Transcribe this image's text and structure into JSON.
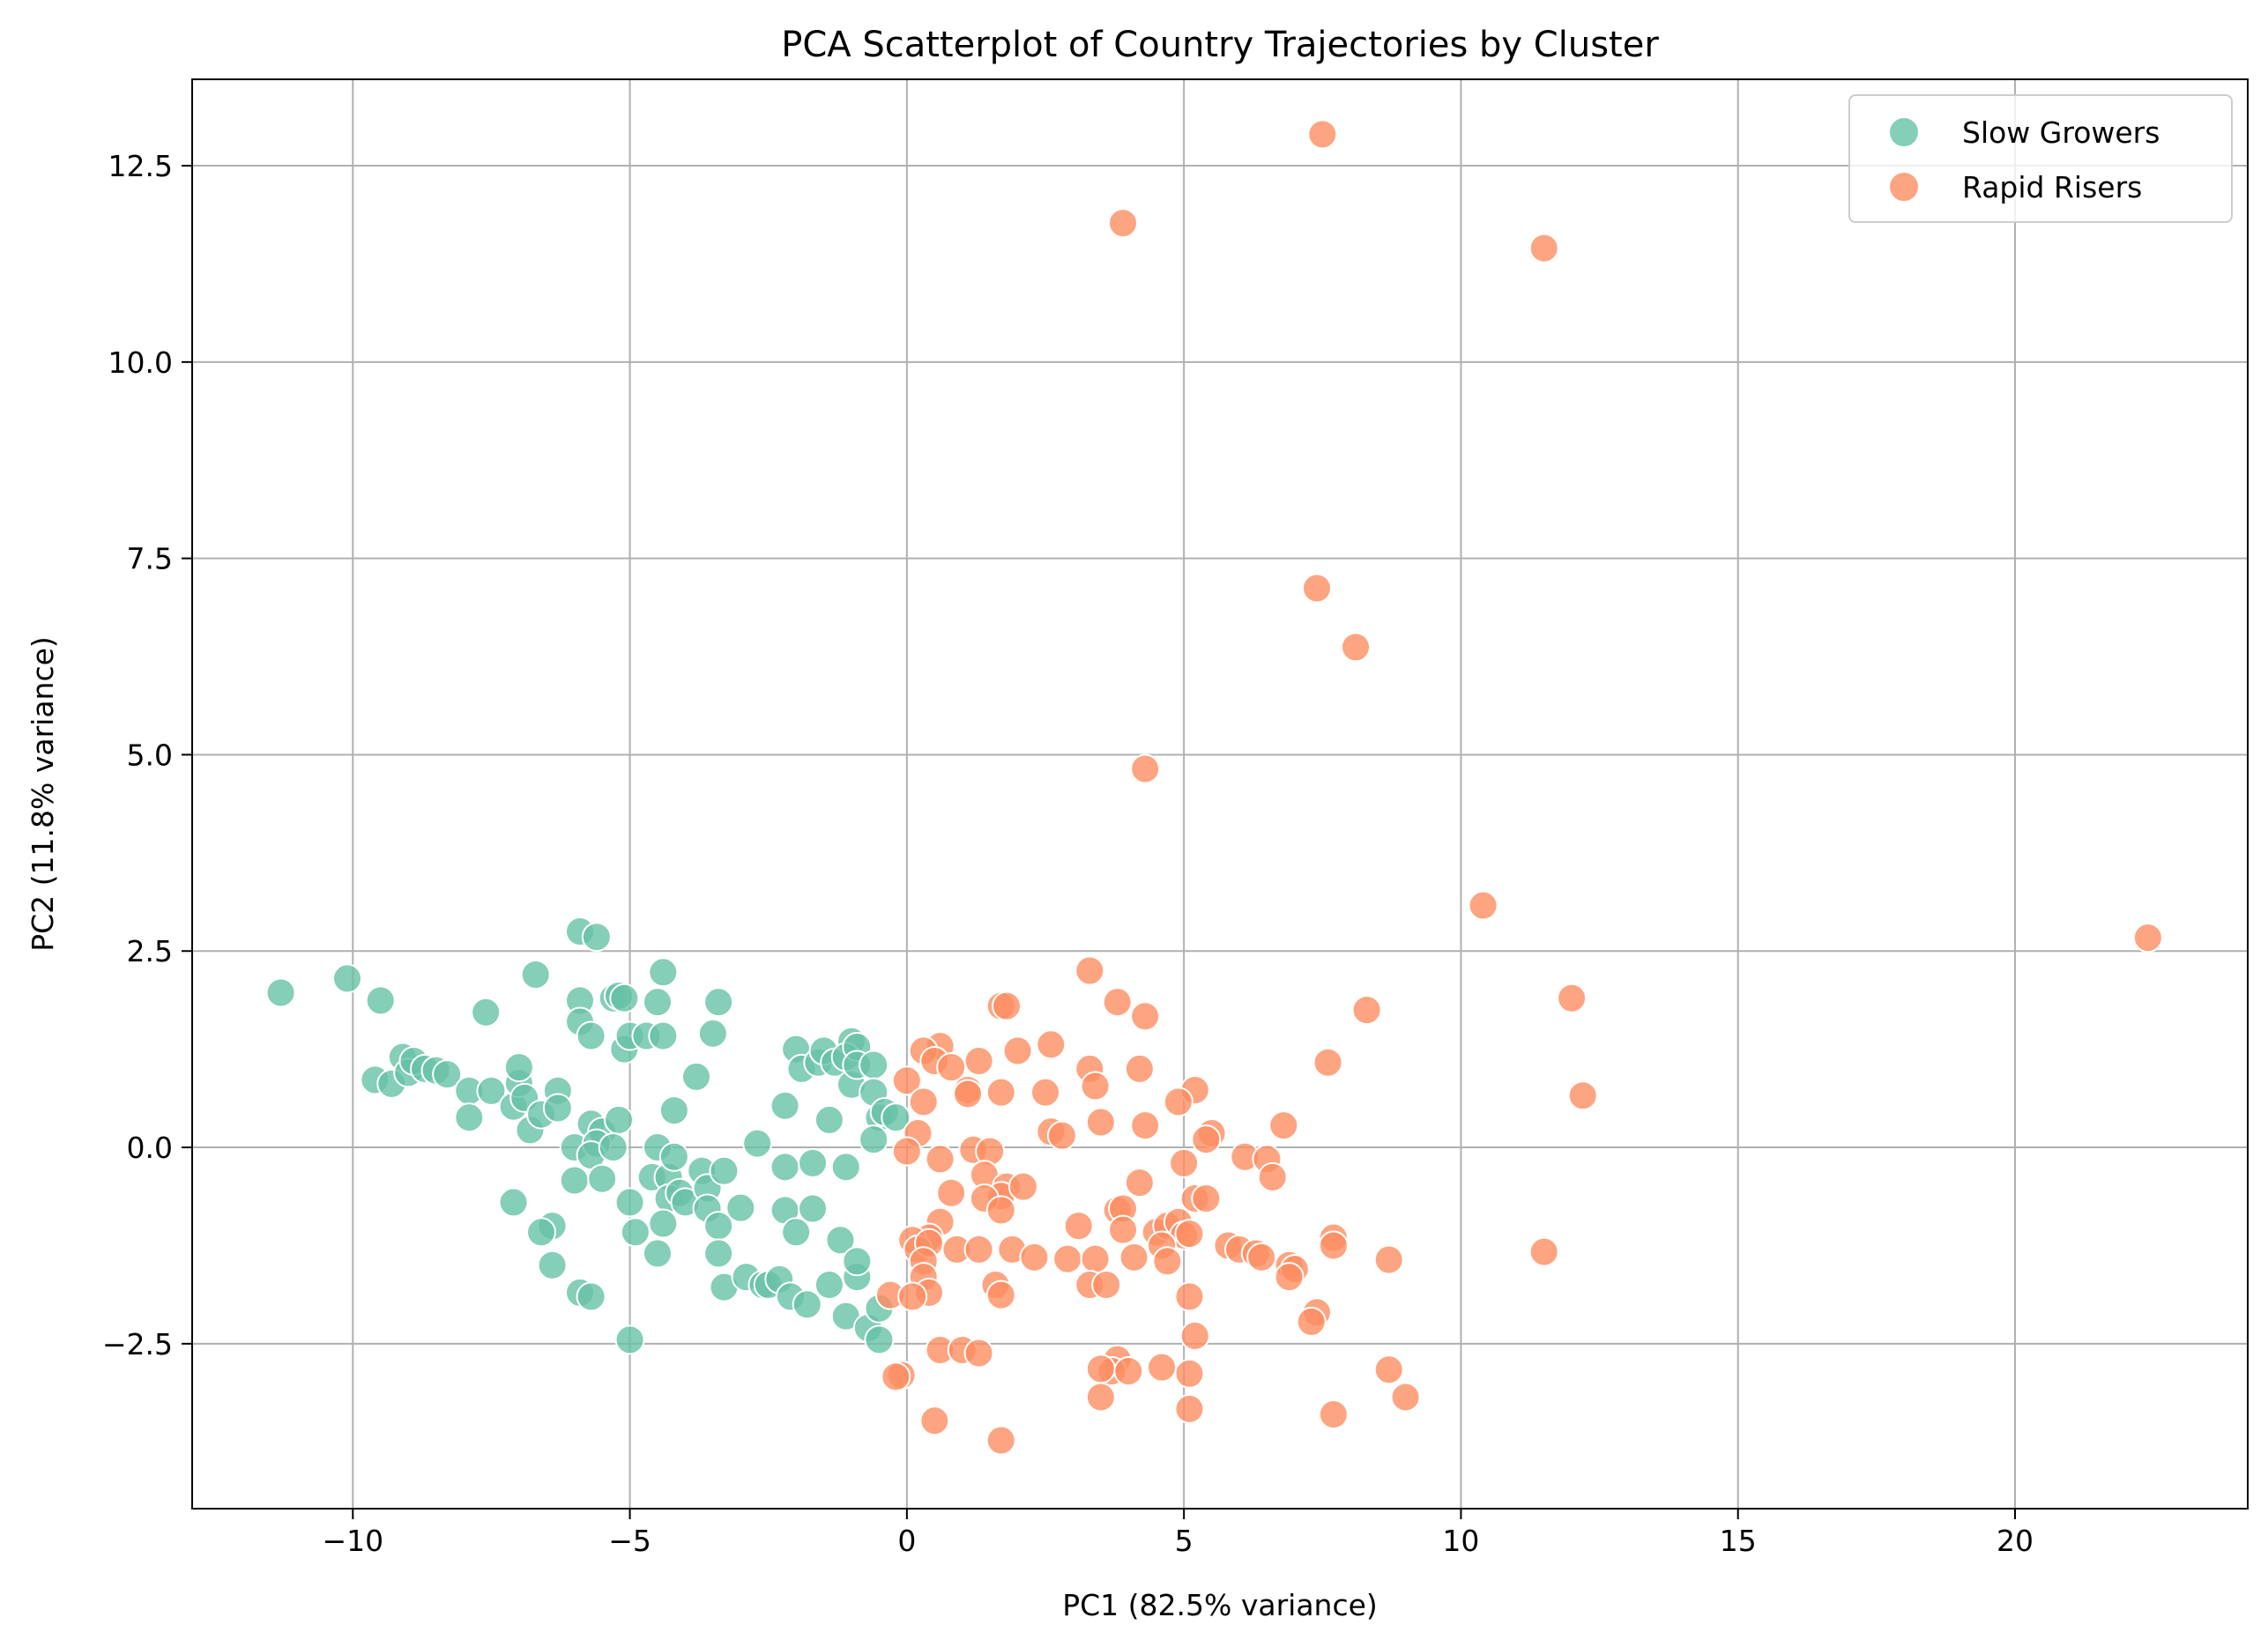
{
  "chart_data": {
    "type": "scatter",
    "title": "PCA Scatterplot of Country Trajectories by Cluster",
    "xlabel": "PC1 (82.5% variance)",
    "ylabel": "PC2 (11.8% variance)",
    "xlim": [
      -12.9,
      24.2
    ],
    "ylim": [
      -4.6,
      13.6
    ],
    "xticks": [
      -10,
      -5,
      0,
      5,
      10,
      15,
      20
    ],
    "xtick_labels": [
      "−10",
      "−5",
      "0",
      "5",
      "10",
      "15",
      "20"
    ],
    "yticks": [
      -2.5,
      0.0,
      2.5,
      5.0,
      7.5,
      10.0,
      12.5
    ],
    "ytick_labels": [
      "−2.5",
      "0.0",
      "2.5",
      "5.0",
      "7.5",
      "10.0",
      "12.5"
    ],
    "grid": true,
    "legend_position": "top-right",
    "series": [
      {
        "name": "Slow Growers",
        "color": "#66c2a5",
        "points": [
          [
            -11.3,
            1.97
          ],
          [
            -10.1,
            2.15
          ],
          [
            -9.5,
            1.87
          ],
          [
            -9.6,
            0.86
          ],
          [
            -9.3,
            0.81
          ],
          [
            -9.1,
            1.15
          ],
          [
            -9.0,
            0.95
          ],
          [
            -8.9,
            1.1
          ],
          [
            -8.7,
            1.0
          ],
          [
            -8.5,
            0.98
          ],
          [
            -8.3,
            0.93
          ],
          [
            -7.9,
            0.72
          ],
          [
            -7.9,
            0.38
          ],
          [
            -7.6,
            1.72
          ],
          [
            -7.5,
            0.72
          ],
          [
            -7.1,
            0.52
          ],
          [
            -7.0,
            0.82
          ],
          [
            -7.0,
            1.02
          ],
          [
            -6.9,
            0.63
          ],
          [
            -6.8,
            0.22
          ],
          [
            -6.7,
            2.2
          ],
          [
            -6.6,
            0.42
          ],
          [
            -6.3,
            0.72
          ],
          [
            -6.3,
            0.5
          ],
          [
            -6.4,
            -1.0
          ],
          [
            -6.6,
            -1.08
          ],
          [
            -6.4,
            -1.5
          ],
          [
            -7.1,
            -0.7
          ],
          [
            -6.0,
            0.0
          ],
          [
            -6.0,
            -0.42
          ],
          [
            -5.9,
            2.75
          ],
          [
            -5.9,
            1.87
          ],
          [
            -5.9,
            1.6
          ],
          [
            -5.6,
            2.68
          ],
          [
            -5.7,
            1.42
          ],
          [
            -5.7,
            0.3
          ],
          [
            -5.5,
            0.2
          ],
          [
            -5.6,
            0.05
          ],
          [
            -5.7,
            -0.1
          ],
          [
            -5.5,
            -0.4
          ],
          [
            -5.3,
            1.9
          ],
          [
            -5.2,
            1.93
          ],
          [
            -5.1,
            1.9
          ],
          [
            -5.1,
            1.25
          ],
          [
            -5.2,
            0.35
          ],
          [
            -5.0,
            1.42
          ],
          [
            -5.3,
            0.0
          ],
          [
            -5.0,
            -0.7
          ],
          [
            -4.9,
            -1.08
          ],
          [
            -5.0,
            -2.45
          ],
          [
            -5.9,
            -1.85
          ],
          [
            -5.7,
            -1.9
          ],
          [
            -4.7,
            1.42
          ],
          [
            -4.5,
            1.85
          ],
          [
            -4.4,
            2.23
          ],
          [
            -4.4,
            1.42
          ],
          [
            -4.5,
            0.0
          ],
          [
            -4.6,
            -0.38
          ],
          [
            -4.3,
            -0.38
          ],
          [
            -4.2,
            0.47
          ],
          [
            -4.3,
            -0.65
          ],
          [
            -4.2,
            -0.12
          ],
          [
            -4.1,
            -0.58
          ],
          [
            -4.0,
            -0.7
          ],
          [
            -4.4,
            -0.97
          ],
          [
            -4.5,
            -1.35
          ],
          [
            -3.8,
            0.9
          ],
          [
            -3.7,
            -0.3
          ],
          [
            -3.6,
            -0.52
          ],
          [
            -3.6,
            -0.78
          ],
          [
            -3.5,
            1.45
          ],
          [
            -3.4,
            1.85
          ],
          [
            -3.3,
            -0.3
          ],
          [
            -3.4,
            -1.0
          ],
          [
            -3.4,
            -1.35
          ],
          [
            -3.3,
            -1.78
          ],
          [
            -3.0,
            -0.77
          ],
          [
            -2.9,
            -1.65
          ],
          [
            -2.7,
            0.05
          ],
          [
            -2.6,
            -1.75
          ],
          [
            -2.5,
            -1.75
          ],
          [
            -2.3,
            -1.68
          ],
          [
            -2.2,
            0.53
          ],
          [
            -2.2,
            -0.25
          ],
          [
            -2.2,
            -0.8
          ],
          [
            -2.1,
            -1.9
          ],
          [
            -2.0,
            1.25
          ],
          [
            -2.0,
            -1.08
          ],
          [
            -1.9,
            1.0
          ],
          [
            -1.8,
            -2.0
          ],
          [
            -1.7,
            -0.2
          ],
          [
            -1.7,
            -0.78
          ],
          [
            -1.6,
            1.08
          ],
          [
            -1.5,
            1.23
          ],
          [
            -1.4,
            0.35
          ],
          [
            -1.3,
            1.08
          ],
          [
            -1.2,
            -1.18
          ],
          [
            -1.1,
            -2.15
          ],
          [
            -1.0,
            1.35
          ],
          [
            -1.1,
            1.15
          ],
          [
            -1.0,
            0.8
          ],
          [
            -1.1,
            -0.25
          ],
          [
            -0.9,
            1.28
          ],
          [
            -0.9,
            1.05
          ],
          [
            -0.9,
            -1.65
          ],
          [
            -0.9,
            -1.45
          ],
          [
            -0.7,
            -2.3
          ],
          [
            -0.6,
            1.05
          ],
          [
            -0.6,
            0.7
          ],
          [
            -0.5,
            0.38
          ],
          [
            -0.6,
            0.1
          ],
          [
            -0.5,
            -2.45
          ],
          [
            -0.5,
            -2.05
          ],
          [
            -0.4,
            0.45
          ],
          [
            -0.2,
            0.38
          ],
          [
            -1.4,
            -1.75
          ]
        ]
      },
      {
        "name": "Rapid Risers",
        "color": "#fc8d62",
        "points": [
          [
            7.5,
            12.9
          ],
          [
            3.9,
            11.77
          ],
          [
            11.5,
            11.45
          ],
          [
            7.4,
            7.12
          ],
          [
            8.1,
            6.37
          ],
          [
            4.3,
            4.82
          ],
          [
            10.4,
            3.08
          ],
          [
            22.4,
            2.67
          ],
          [
            12.0,
            1.9
          ],
          [
            8.3,
            1.75
          ],
          [
            12.2,
            0.66
          ],
          [
            3.3,
            2.25
          ],
          [
            3.8,
            1.85
          ],
          [
            4.3,
            1.67
          ],
          [
            1.7,
            1.8
          ],
          [
            1.8,
            1.8
          ],
          [
            7.6,
            1.08
          ],
          [
            2.0,
            1.23
          ],
          [
            2.6,
            1.31
          ],
          [
            0.6,
            1.29
          ],
          [
            0.3,
            1.23
          ],
          [
            0.5,
            1.1
          ],
          [
            1.3,
            1.1
          ],
          [
            0.8,
            1.02
          ],
          [
            3.3,
            1.0
          ],
          [
            4.2,
            1.0
          ],
          [
            0.0,
            0.85
          ],
          [
            1.1,
            0.73
          ],
          [
            2.5,
            0.7
          ],
          [
            3.4,
            0.78
          ],
          [
            5.2,
            0.73
          ],
          [
            0.3,
            0.58
          ],
          [
            4.9,
            0.58
          ],
          [
            1.1,
            0.68
          ],
          [
            1.7,
            0.7
          ],
          [
            6.8,
            0.28
          ],
          [
            4.3,
            0.28
          ],
          [
            2.6,
            0.2
          ],
          [
            3.5,
            0.32
          ],
          [
            0.2,
            0.18
          ],
          [
            2.8,
            0.15
          ],
          [
            5.5,
            0.18
          ],
          [
            5.4,
            0.1
          ],
          [
            0.0,
            -0.05
          ],
          [
            1.2,
            -0.03
          ],
          [
            1.5,
            -0.05
          ],
          [
            0.6,
            -0.15
          ],
          [
            1.4,
            -0.35
          ],
          [
            1.8,
            -0.5
          ],
          [
            1.7,
            -0.62
          ],
          [
            1.4,
            -0.65
          ],
          [
            2.1,
            -0.5
          ],
          [
            4.2,
            -0.45
          ],
          [
            5.0,
            -0.2
          ],
          [
            6.1,
            -0.12
          ],
          [
            6.5,
            -0.15
          ],
          [
            6.6,
            -0.38
          ],
          [
            0.8,
            -0.58
          ],
          [
            1.7,
            -0.8
          ],
          [
            5.2,
            -0.65
          ],
          [
            5.4,
            -0.65
          ],
          [
            3.8,
            -0.8
          ],
          [
            3.9,
            -0.78
          ],
          [
            0.6,
            -0.95
          ],
          [
            3.1,
            -1.0
          ],
          [
            3.9,
            -1.05
          ],
          [
            4.5,
            -1.08
          ],
          [
            4.7,
            -1.0
          ],
          [
            4.9,
            -0.95
          ],
          [
            5.0,
            -1.12
          ],
          [
            5.1,
            -1.1
          ],
          [
            4.6,
            -1.25
          ],
          [
            4.1,
            -1.4
          ],
          [
            0.4,
            -1.15
          ],
          [
            0.1,
            -1.18
          ],
          [
            0.2,
            -1.3
          ],
          [
            0.4,
            -1.22
          ],
          [
            0.3,
            -1.45
          ],
          [
            0.9,
            -1.3
          ],
          [
            1.3,
            -1.3
          ],
          [
            1.9,
            -1.3
          ],
          [
            2.3,
            -1.4
          ],
          [
            2.9,
            -1.42
          ],
          [
            3.4,
            -1.42
          ],
          [
            5.8,
            -1.25
          ],
          [
            6.0,
            -1.3
          ],
          [
            6.3,
            -1.35
          ],
          [
            6.4,
            -1.4
          ],
          [
            6.9,
            -1.5
          ],
          [
            7.0,
            -1.55
          ],
          [
            6.9,
            -1.65
          ],
          [
            7.7,
            -1.15
          ],
          [
            7.7,
            -1.25
          ],
          [
            8.7,
            -1.43
          ],
          [
            11.5,
            -1.33
          ],
          [
            4.7,
            -1.45
          ],
          [
            0.3,
            -1.65
          ],
          [
            0.4,
            -1.85
          ],
          [
            1.6,
            -1.75
          ],
          [
            1.7,
            -1.88
          ],
          [
            3.3,
            -1.75
          ],
          [
            3.6,
            -1.75
          ],
          [
            5.1,
            -1.9
          ],
          [
            -0.3,
            -1.88
          ],
          [
            0.1,
            -1.9
          ],
          [
            7.4,
            -2.1
          ],
          [
            7.3,
            -2.22
          ],
          [
            5.2,
            -2.4
          ],
          [
            0.6,
            -2.58
          ],
          [
            1.0,
            -2.58
          ],
          [
            1.3,
            -2.62
          ],
          [
            3.8,
            -2.7
          ],
          [
            3.7,
            -2.85
          ],
          [
            3.5,
            -2.82
          ],
          [
            4.0,
            -2.85
          ],
          [
            4.6,
            -2.8
          ],
          [
            5.1,
            -2.88
          ],
          [
            8.7,
            -2.83
          ],
          [
            -0.1,
            -2.9
          ],
          [
            -0.2,
            -2.92
          ],
          [
            3.5,
            -3.18
          ],
          [
            9.0,
            -3.18
          ],
          [
            5.1,
            -3.33
          ],
          [
            7.7,
            -3.4
          ],
          [
            0.5,
            -3.48
          ],
          [
            1.7,
            -3.73
          ]
        ]
      }
    ]
  }
}
